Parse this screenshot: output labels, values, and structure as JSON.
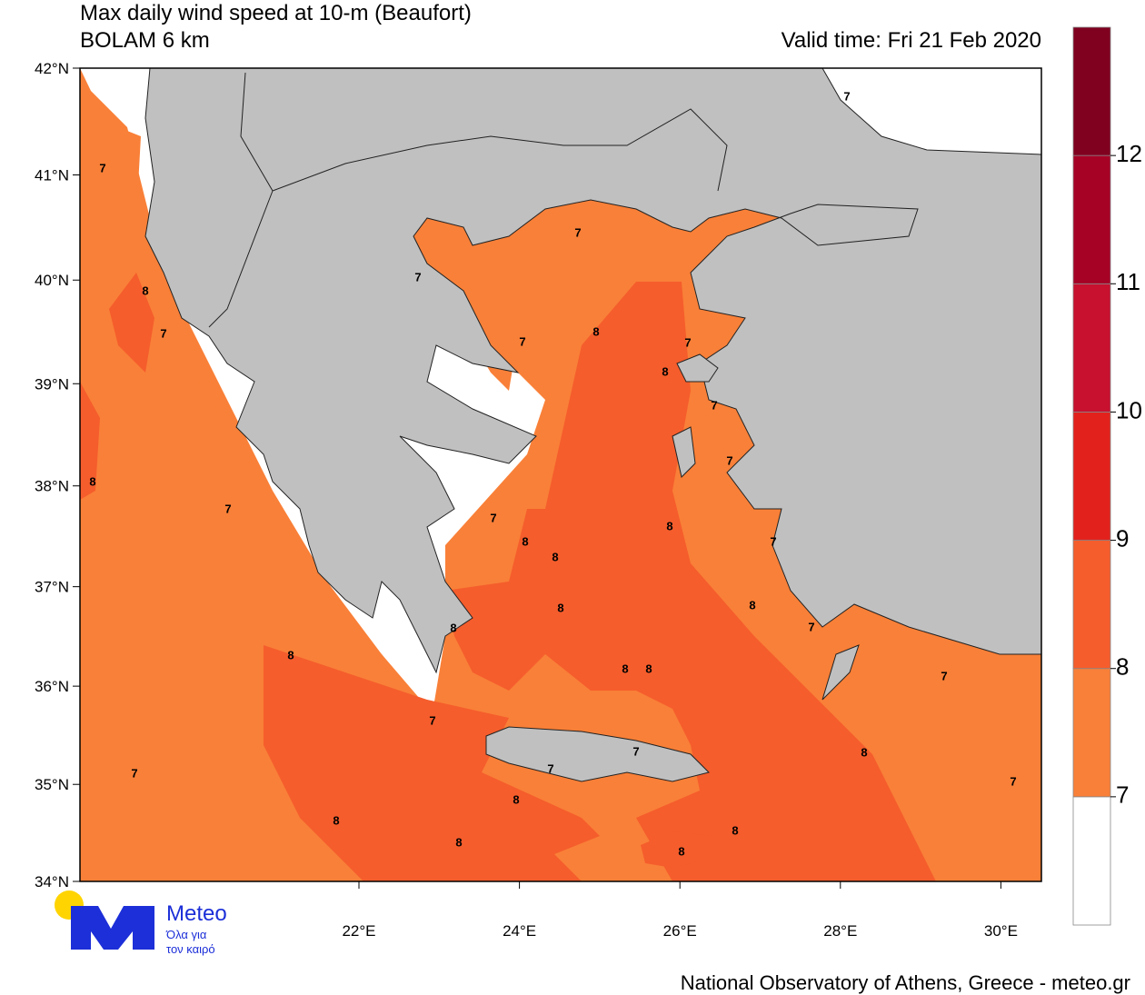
{
  "header": {
    "title": "Max daily wind speed at 10-m (Beaufort)",
    "subtitle": "BOLAM 6 km",
    "valid_time": "Valid time: Fri 21 Feb 2020"
  },
  "map": {
    "lat_ticks": [
      {
        "value": 42,
        "label": "42°N"
      },
      {
        "value": 41,
        "label": "41°N"
      },
      {
        "value": 40,
        "label": "40°N"
      },
      {
        "value": 39,
        "label": "39°N"
      },
      {
        "value": 38,
        "label": "38°N"
      },
      {
        "value": 37,
        "label": "37°N"
      },
      {
        "value": 36,
        "label": "36°N"
      },
      {
        "value": 35,
        "label": "35°N"
      },
      {
        "value": 34,
        "label": "34°N"
      }
    ],
    "lon_ticks": [
      {
        "value": 22,
        "label": "22°E"
      },
      {
        "value": 24,
        "label": "24°E"
      },
      {
        "value": 26,
        "label": "26°E"
      },
      {
        "value": 28,
        "label": "28°E"
      },
      {
        "value": 30,
        "label": "30°E"
      }
    ],
    "contour_labels": [
      7,
      8,
      7,
      8,
      7,
      7,
      7,
      7,
      8,
      7,
      7,
      8,
      7,
      7,
      7,
      8,
      8,
      8,
      7,
      8,
      8,
      8,
      7,
      8,
      8,
      8,
      7,
      7,
      7,
      8,
      7,
      7,
      7,
      8,
      8,
      8,
      8,
      8
    ]
  },
  "colorbar": {
    "levels": [
      7,
      8,
      9,
      10,
      11,
      12
    ],
    "colors": [
      "#ffffff",
      "#f98038",
      "#f55d2c",
      "#e3211c",
      "#c8102f",
      "#a60226",
      "#800020"
    ]
  },
  "logo": {
    "name": "Meteo",
    "tagline_1": "Όλα για",
    "tagline_2": "τον καιρό"
  },
  "footer": "National Observatory of Athens, Greece - meteo.gr"
}
